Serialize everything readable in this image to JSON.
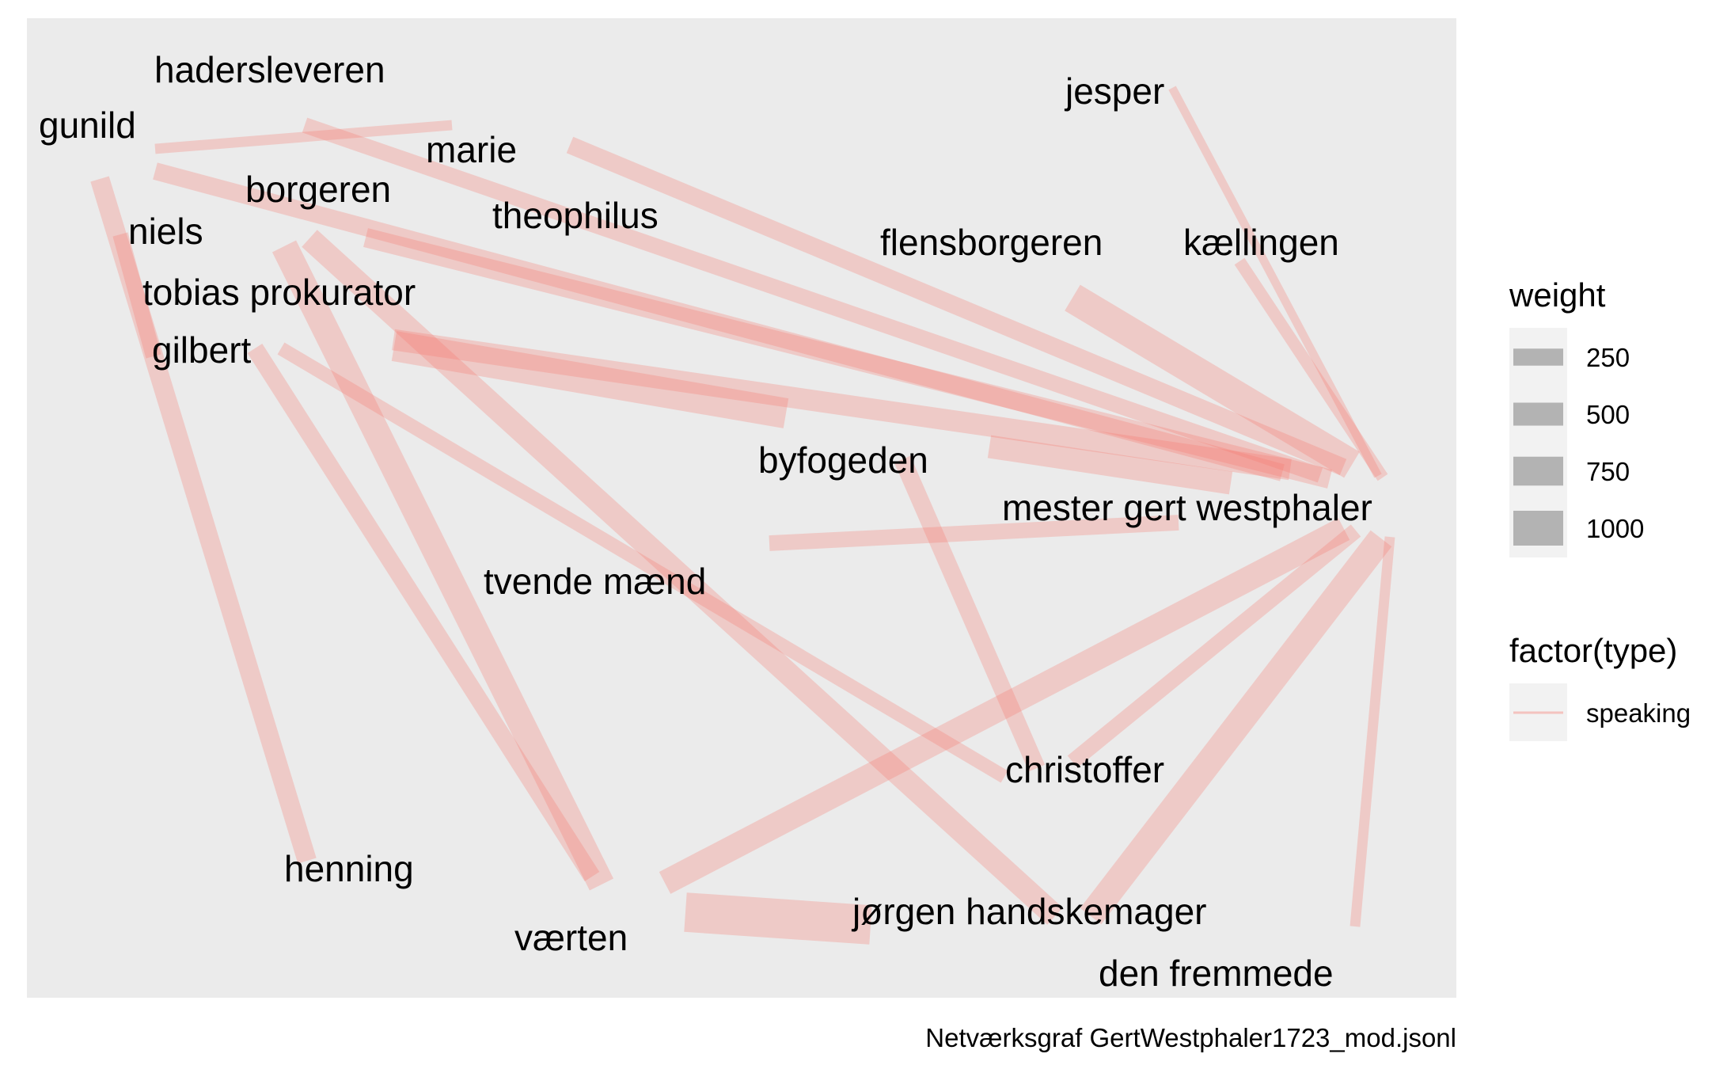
{
  "caption": "Netværksgraf GertWestphaler1723_mod.jsonl",
  "edge_color": "#F8766D",
  "edge_opacity": 0.28,
  "panel_color": "#EBEBEB",
  "nodes": [
    {
      "id": "haderslevern",
      "label": "hadersleveren"
    },
    {
      "id": "gunild",
      "label": "gunild"
    },
    {
      "id": "marie",
      "label": "marie"
    },
    {
      "id": "borgeren",
      "label": "borgeren"
    },
    {
      "id": "theophilus",
      "label": "theophilus"
    },
    {
      "id": "niels",
      "label": "niels"
    },
    {
      "id": "tobias",
      "label": "tobias prokurator"
    },
    {
      "id": "gilbert",
      "label": "gilbert"
    },
    {
      "id": "jesper",
      "label": "jesper"
    },
    {
      "id": "flensborgeren",
      "label": "flensborgeren"
    },
    {
      "id": "kaellingen",
      "label": "kællingen"
    },
    {
      "id": "byfogeden",
      "label": "byfogeden"
    },
    {
      "id": "gert",
      "label": "mester gert westphaler"
    },
    {
      "id": "tvende",
      "label": "tvende mænd"
    },
    {
      "id": "christoffer",
      "label": "christoffer"
    },
    {
      "id": "henning",
      "label": "henning"
    },
    {
      "id": "jorgen",
      "label": "jørgen handskemager"
    },
    {
      "id": "vaerten",
      "label": "værten"
    },
    {
      "id": "fremmede",
      "label": "den fremmede"
    }
  ],
  "edges": [
    {
      "source": "haderslevern",
      "target": "gert",
      "weight": 300
    },
    {
      "source": "gunild",
      "target": "marie",
      "weight": 150
    },
    {
      "source": "gunild",
      "target": "gert",
      "weight": 350
    },
    {
      "source": "gunild",
      "target": "henning",
      "weight": 400
    },
    {
      "source": "marie",
      "target": "gert",
      "weight": 350
    },
    {
      "source": "borgeren",
      "target": "gert",
      "weight": 400
    },
    {
      "source": "theophilus",
      "target": "gert",
      "weight": 450
    },
    {
      "source": "niels",
      "target": "tobias",
      "weight": 300
    },
    {
      "source": "tobias",
      "target": "vaerten",
      "weight": 600
    },
    {
      "source": "tobias",
      "target": "jorgen",
      "weight": 500
    },
    {
      "source": "tobias",
      "target": "byfogeden",
      "weight": 700
    },
    {
      "source": "gilbert",
      "target": "vaerten",
      "weight": 350
    },
    {
      "source": "gilbert",
      "target": "christoffer",
      "weight": 250
    },
    {
      "source": "jesper",
      "target": "gert",
      "weight": 100
    },
    {
      "source": "flensborgeren",
      "target": "gert",
      "weight": 700
    },
    {
      "source": "kaellingen",
      "target": "gert",
      "weight": 200
    },
    {
      "source": "byfogeden",
      "target": "gert",
      "weight": 500
    },
    {
      "source": "byfogeden",
      "target": "christoffer",
      "weight": 350
    },
    {
      "source": "tvende",
      "target": "gert",
      "weight": 300
    },
    {
      "source": "christoffer",
      "target": "gert",
      "weight": 300
    },
    {
      "source": "vaerten",
      "target": "gert",
      "weight": 550
    },
    {
      "source": "vaerten",
      "target": "jorgen",
      "weight": 950
    },
    {
      "source": "jorgen",
      "target": "gert",
      "weight": 600
    },
    {
      "source": "fremmede",
      "target": "gert",
      "weight": 150
    }
  ],
  "legend": {
    "weight_title": "weight",
    "weight_items": [
      {
        "label": "250",
        "value": 250
      },
      {
        "label": "500",
        "value": 500
      },
      {
        "label": "750",
        "value": 750
      },
      {
        "label": "1000",
        "value": 1000
      }
    ],
    "type_title": "factor(type)",
    "type_items": [
      {
        "label": "speaking"
      }
    ]
  }
}
